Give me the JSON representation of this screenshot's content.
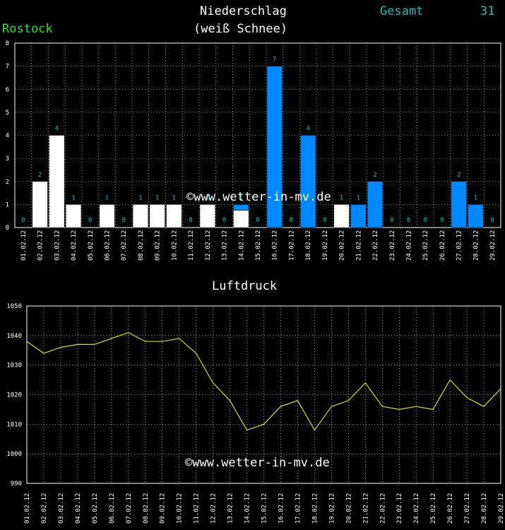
{
  "header": {
    "title": "Niederschlag",
    "subtitle": "(weiß Schnee)",
    "station": "Rostock",
    "total_label": "Gesamt",
    "total_value": "31"
  },
  "watermark": "©www.wetter-in-mv.de",
  "colors": {
    "snow": "#ffffff",
    "rain": "#0088ff",
    "value_label": "#22bbbb",
    "station": "#33dd33",
    "pressure_line": "#dddd22"
  },
  "chart_data": [
    {
      "type": "bar",
      "title": "Niederschlag",
      "categories": [
        "01.02.12",
        "02.02.12",
        "03.02.12",
        "04.02.12",
        "05.02.12",
        "06.02.12",
        "07.02.12",
        "08.02.12",
        "09.02.12",
        "10.02.12",
        "11.02.12",
        "12.02.12",
        "13.02.12",
        "14.02.12",
        "15.02.12",
        "16.02.12",
        "17.02.12",
        "18.02.12",
        "19.02.12",
        "20.02.12",
        "21.02.12",
        "22.02.12",
        "23.02.12",
        "24.02.12",
        "25.02.12",
        "26.02.12",
        "27.02.12",
        "28.02.12",
        "29.02.12"
      ],
      "values": [
        0,
        2,
        4,
        1,
        0,
        1,
        0,
        1,
        1,
        1,
        0,
        1,
        0,
        1,
        0,
        7,
        0,
        4,
        0,
        1,
        1,
        2,
        0,
        0,
        0,
        0,
        2,
        1,
        0
      ],
      "series": [
        {
          "name": "Schnee",
          "values": [
            0,
            2,
            4,
            1,
            0,
            1,
            0,
            1,
            1,
            1,
            0,
            1,
            0,
            0.75,
            0,
            0,
            0,
            0,
            0,
            1,
            0,
            0,
            0,
            0,
            0,
            0,
            0,
            0,
            0
          ]
        },
        {
          "name": "",
          "values": [
            0,
            0,
            0,
            0,
            0,
            0,
            0,
            0,
            0,
            0,
            0,
            0,
            0,
            0.25,
            0,
            7,
            0,
            4,
            0,
            0,
            1,
            2,
            0,
            0,
            0,
            0,
            2,
            1,
            0
          ]
        }
      ],
      "data_labels": [
        "0",
        "2",
        "4",
        "1",
        "0",
        "1",
        "0",
        "1",
        "1",
        "1",
        "0",
        "1",
        "0",
        "1",
        "0",
        "7",
        "0",
        "4",
        "0",
        "1",
        "1",
        "2",
        "0",
        "0",
        "0",
        "0",
        "2",
        "1",
        "0"
      ],
      "ylim": [
        0,
        8
      ],
      "yticks": [
        "0",
        "1",
        "2",
        "3",
        "4",
        "5",
        "6",
        "7",
        "8"
      ],
      "grid": true
    },
    {
      "type": "line",
      "title": "Luftdruck",
      "categories": [
        "01.02.12",
        "02.02.12",
        "03.02.12",
        "04.02.12",
        "05.02.12",
        "06.02.12",
        "07.02.12",
        "08.02.12",
        "09.02.12",
        "10.02.12",
        "11.02.12",
        "12.02.12",
        "13.02.12",
        "14.02.12",
        "15.02.12",
        "16.02.12",
        "17.02.12",
        "18.02.12",
        "19.02.12",
        "20.02.12",
        "21.02.12",
        "22.02.12",
        "23.02.12",
        "24.02.12",
        "25.02.12",
        "26.02.12",
        "27.02.12",
        "28.02.12",
        "29.02.12"
      ],
      "values": [
        1038,
        1034,
        1036,
        1037,
        1037,
        1039,
        1041,
        1038,
        1038,
        1039,
        1034,
        1024,
        1018,
        1008,
        1010,
        1016,
        1018,
        1008,
        1016,
        1018,
        1024,
        1016,
        1015,
        1016,
        1015,
        1025,
        1019,
        1016,
        1022
      ],
      "ylim": [
        990,
        1050
      ],
      "yticks": [
        "990",
        "1000",
        "1010",
        "1020",
        "1030",
        "1040",
        "1050"
      ],
      "grid": true
    }
  ]
}
